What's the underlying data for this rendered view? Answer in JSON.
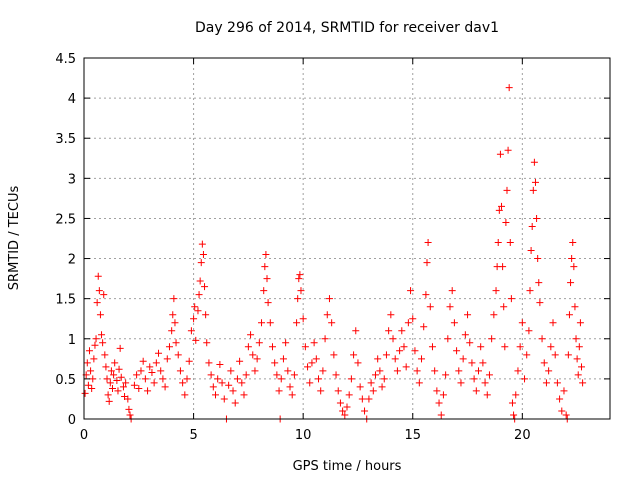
{
  "chart_data": {
    "type": "scatter",
    "title": "Day 296 of 2014, SRMTID for receiver dav1",
    "xlabel": "GPS time / hours",
    "ylabel": "SRMTID / TECUs",
    "xlim": [
      0,
      24
    ],
    "ylim": [
      0,
      4.5
    ],
    "xticks": [
      0,
      5,
      10,
      15,
      20
    ],
    "yticks": [
      0,
      0.5,
      1,
      1.5,
      2,
      2.5,
      3,
      3.5,
      4,
      4.5
    ],
    "grid": true,
    "marker": "plus",
    "color": "#ff0000",
    "series": [
      {
        "name": "dav1",
        "points": [
          [
            0.05,
            0.32
          ],
          [
            0.1,
            0.55
          ],
          [
            0.15,
            0.7
          ],
          [
            0.2,
            0.42
          ],
          [
            0.25,
            0.85
          ],
          [
            0.3,
            0.6
          ],
          [
            0.35,
            0.38
          ],
          [
            0.4,
            0.5
          ],
          [
            0.45,
            0.75
          ],
          [
            0.5,
            0.92
          ],
          [
            0.55,
            1.0
          ],
          [
            0.6,
            1.45
          ],
          [
            0.65,
            1.78
          ],
          [
            0.7,
            1.6
          ],
          [
            0.75,
            1.3
          ],
          [
            0.8,
            1.05
          ],
          [
            0.85,
            0.95
          ],
          [
            0.9,
            1.55
          ],
          [
            0.95,
            0.8
          ],
          [
            1.0,
            0.65
          ],
          [
            1.05,
            0.5
          ],
          [
            1.1,
            0.3
          ],
          [
            1.15,
            0.22
          ],
          [
            1.2,
            0.45
          ],
          [
            1.25,
            0.6
          ],
          [
            1.3,
            0.38
          ],
          [
            1.35,
            0.55
          ],
          [
            1.4,
            0.7
          ],
          [
            1.5,
            0.48
          ],
          [
            1.55,
            0.35
          ],
          [
            1.6,
            0.62
          ],
          [
            1.65,
            0.88
          ],
          [
            1.7,
            0.52
          ],
          [
            1.8,
            0.4
          ],
          [
            1.85,
            0.28
          ],
          [
            1.9,
            0.45
          ],
          [
            2.0,
            0.25
          ],
          [
            2.05,
            0.12
          ],
          [
            2.1,
            0.05
          ],
          [
            2.15,
            0.0
          ],
          [
            2.3,
            0.42
          ],
          [
            2.4,
            0.55
          ],
          [
            2.5,
            0.38
          ],
          [
            2.6,
            0.6
          ],
          [
            2.7,
            0.72
          ],
          [
            2.8,
            0.5
          ],
          [
            2.9,
            0.35
          ],
          [
            3.0,
            0.65
          ],
          [
            3.1,
            0.58
          ],
          [
            3.2,
            0.45
          ],
          [
            3.3,
            0.7
          ],
          [
            3.4,
            0.82
          ],
          [
            3.5,
            0.6
          ],
          [
            3.6,
            0.5
          ],
          [
            3.7,
            0.4
          ],
          [
            3.8,
            0.75
          ],
          [
            3.9,
            0.9
          ],
          [
            4.0,
            1.1
          ],
          [
            4.05,
            1.3
          ],
          [
            4.1,
            1.5
          ],
          [
            4.15,
            1.2
          ],
          [
            4.2,
            0.95
          ],
          [
            4.3,
            0.8
          ],
          [
            4.4,
            0.6
          ],
          [
            4.5,
            0.45
          ],
          [
            4.6,
            0.3
          ],
          [
            4.7,
            0.5
          ],
          [
            4.8,
            0.72
          ],
          [
            4.9,
            1.1
          ],
          [
            5.0,
            1.25
          ],
          [
            5.05,
            1.4
          ],
          [
            5.1,
            0.98
          ],
          [
            5.2,
            1.35
          ],
          [
            5.25,
            1.55
          ],
          [
            5.3,
            1.72
          ],
          [
            5.35,
            1.95
          ],
          [
            5.4,
            2.18
          ],
          [
            5.45,
            2.05
          ],
          [
            5.5,
            1.65
          ],
          [
            5.55,
            1.3
          ],
          [
            5.6,
            0.95
          ],
          [
            5.7,
            0.7
          ],
          [
            5.8,
            0.55
          ],
          [
            5.9,
            0.4
          ],
          [
            6.0,
            0.3
          ],
          [
            6.1,
            0.5
          ],
          [
            6.2,
            0.68
          ],
          [
            6.3,
            0.45
          ],
          [
            6.4,
            0.25
          ],
          [
            6.5,
            0.0
          ],
          [
            6.6,
            0.42
          ],
          [
            6.7,
            0.6
          ],
          [
            6.8,
            0.35
          ],
          [
            6.9,
            0.2
          ],
          [
            7.0,
            0.5
          ],
          [
            7.1,
            0.72
          ],
          [
            7.2,
            0.45
          ],
          [
            7.3,
            0.3
          ],
          [
            7.4,
            0.55
          ],
          [
            7.5,
            0.9
          ],
          [
            7.6,
            1.05
          ],
          [
            7.7,
            0.8
          ],
          [
            7.8,
            0.6
          ],
          [
            7.9,
            0.75
          ],
          [
            8.0,
            0.95
          ],
          [
            8.1,
            1.2
          ],
          [
            8.2,
            1.6
          ],
          [
            8.25,
            1.9
          ],
          [
            8.3,
            2.05
          ],
          [
            8.35,
            1.75
          ],
          [
            8.4,
            1.45
          ],
          [
            8.5,
            1.2
          ],
          [
            8.6,
            0.9
          ],
          [
            8.7,
            0.7
          ],
          [
            8.8,
            0.55
          ],
          [
            8.9,
            0.35
          ],
          [
            8.95,
            0.0
          ],
          [
            9.0,
            0.5
          ],
          [
            9.1,
            0.75
          ],
          [
            9.2,
            0.95
          ],
          [
            9.3,
            0.6
          ],
          [
            9.4,
            0.4
          ],
          [
            9.5,
            0.3
          ],
          [
            9.6,
            0.55
          ],
          [
            9.7,
            1.2
          ],
          [
            9.75,
            1.5
          ],
          [
            9.8,
            1.75
          ],
          [
            9.85,
            1.8
          ],
          [
            9.9,
            1.6
          ],
          [
            10.0,
            1.25
          ],
          [
            10.1,
            0.9
          ],
          [
            10.2,
            0.65
          ],
          [
            10.3,
            0.45
          ],
          [
            10.4,
            0.7
          ],
          [
            10.5,
            0.95
          ],
          [
            10.6,
            0.75
          ],
          [
            10.7,
            0.5
          ],
          [
            10.8,
            0.35
          ],
          [
            10.9,
            0.6
          ],
          [
            11.0,
            1.0
          ],
          [
            11.1,
            1.3
          ],
          [
            11.2,
            1.5
          ],
          [
            11.3,
            1.2
          ],
          [
            11.4,
            0.8
          ],
          [
            11.5,
            0.55
          ],
          [
            11.6,
            0.35
          ],
          [
            11.7,
            0.2
          ],
          [
            11.8,
            0.1
          ],
          [
            11.9,
            0.05
          ],
          [
            12.0,
            0.15
          ],
          [
            12.1,
            0.3
          ],
          [
            12.2,
            0.5
          ],
          [
            12.3,
            0.8
          ],
          [
            12.4,
            1.1
          ],
          [
            12.5,
            0.7
          ],
          [
            12.6,
            0.4
          ],
          [
            12.7,
            0.25
          ],
          [
            12.8,
            0.1
          ],
          [
            12.9,
            0.0
          ],
          [
            13.0,
            0.25
          ],
          [
            13.1,
            0.45
          ],
          [
            13.2,
            0.35
          ],
          [
            13.3,
            0.55
          ],
          [
            13.4,
            0.75
          ],
          [
            13.5,
            0.6
          ],
          [
            13.6,
            0.4
          ],
          [
            13.7,
            0.5
          ],
          [
            13.8,
            0.8
          ],
          [
            13.9,
            1.1
          ],
          [
            14.0,
            1.3
          ],
          [
            14.1,
            1.0
          ],
          [
            14.2,
            0.75
          ],
          [
            14.3,
            0.6
          ],
          [
            14.4,
            0.85
          ],
          [
            14.5,
            1.1
          ],
          [
            14.6,
            0.9
          ],
          [
            14.7,
            0.65
          ],
          [
            14.8,
            1.2
          ],
          [
            14.9,
            1.6
          ],
          [
            15.0,
            1.25
          ],
          [
            15.1,
            0.85
          ],
          [
            15.2,
            0.6
          ],
          [
            15.3,
            0.45
          ],
          [
            15.4,
            0.75
          ],
          [
            15.5,
            1.15
          ],
          [
            15.6,
            1.55
          ],
          [
            15.65,
            1.95
          ],
          [
            15.7,
            2.2
          ],
          [
            15.8,
            1.4
          ],
          [
            15.9,
            0.9
          ],
          [
            16.0,
            0.6
          ],
          [
            16.1,
            0.35
          ],
          [
            16.2,
            0.2
          ],
          [
            16.3,
            0.05
          ],
          [
            16.4,
            0.3
          ],
          [
            16.5,
            0.55
          ],
          [
            16.6,
            1.0
          ],
          [
            16.7,
            1.4
          ],
          [
            16.8,
            1.6
          ],
          [
            16.9,
            1.2
          ],
          [
            17.0,
            0.85
          ],
          [
            17.1,
            0.6
          ],
          [
            17.2,
            0.45
          ],
          [
            17.3,
            0.75
          ],
          [
            17.4,
            1.05
          ],
          [
            17.5,
            1.3
          ],
          [
            17.6,
            0.95
          ],
          [
            17.7,
            0.7
          ],
          [
            17.8,
            0.5
          ],
          [
            17.9,
            0.35
          ],
          [
            18.0,
            0.6
          ],
          [
            18.1,
            0.9
          ],
          [
            18.2,
            0.7
          ],
          [
            18.3,
            0.45
          ],
          [
            18.4,
            0.3
          ],
          [
            18.5,
            0.55
          ],
          [
            18.6,
            1.0
          ],
          [
            18.7,
            1.3
          ],
          [
            18.8,
            1.6
          ],
          [
            18.85,
            1.9
          ],
          [
            18.9,
            2.2
          ],
          [
            18.95,
            2.6
          ],
          [
            19.0,
            3.3
          ],
          [
            19.05,
            2.65
          ],
          [
            19.1,
            1.9
          ],
          [
            19.15,
            1.4
          ],
          [
            19.2,
            0.9
          ],
          [
            19.25,
            2.45
          ],
          [
            19.3,
            2.85
          ],
          [
            19.35,
            3.35
          ],
          [
            19.4,
            4.13
          ],
          [
            19.45,
            2.2
          ],
          [
            19.5,
            1.5
          ],
          [
            19.55,
            0.2
          ],
          [
            19.6,
            0.05
          ],
          [
            19.65,
            0.0
          ],
          [
            19.7,
            0.3
          ],
          [
            19.8,
            0.6
          ],
          [
            19.9,
            0.9
          ],
          [
            20.0,
            1.2
          ],
          [
            20.1,
            0.5
          ],
          [
            20.2,
            0.8
          ],
          [
            20.3,
            1.1
          ],
          [
            20.35,
            1.6
          ],
          [
            20.4,
            2.1
          ],
          [
            20.45,
            2.4
          ],
          [
            20.5,
            2.85
          ],
          [
            20.55,
            3.2
          ],
          [
            20.6,
            2.95
          ],
          [
            20.65,
            2.5
          ],
          [
            20.7,
            2.0
          ],
          [
            20.75,
            1.7
          ],
          [
            20.8,
            1.45
          ],
          [
            20.9,
            1.0
          ],
          [
            21.0,
            0.7
          ],
          [
            21.1,
            0.45
          ],
          [
            21.2,
            0.6
          ],
          [
            21.3,
            0.9
          ],
          [
            21.4,
            1.2
          ],
          [
            21.5,
            0.8
          ],
          [
            21.6,
            0.45
          ],
          [
            21.7,
            0.25
          ],
          [
            21.8,
            0.1
          ],
          [
            21.9,
            0.35
          ],
          [
            22.0,
            0.05
          ],
          [
            22.05,
            0.0
          ],
          [
            22.1,
            0.8
          ],
          [
            22.15,
            1.3
          ],
          [
            22.2,
            1.7
          ],
          [
            22.25,
            2.0
          ],
          [
            22.3,
            2.2
          ],
          [
            22.35,
            1.9
          ],
          [
            22.4,
            1.4
          ],
          [
            22.45,
            1.0
          ],
          [
            22.5,
            0.75
          ],
          [
            22.55,
            0.55
          ],
          [
            22.6,
            0.9
          ],
          [
            22.65,
            1.2
          ],
          [
            22.7,
            0.65
          ],
          [
            22.75,
            0.45
          ]
        ]
      }
    ]
  }
}
